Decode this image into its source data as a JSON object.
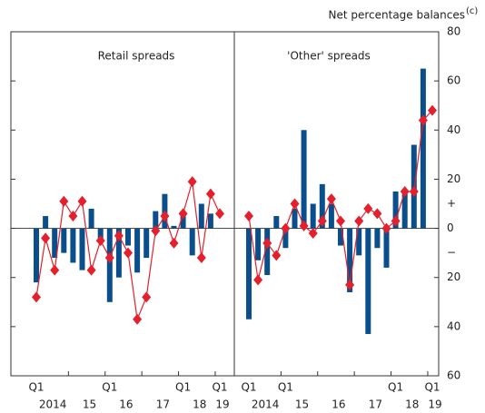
{
  "chart_data": {
    "type": "bar_line",
    "y_title": "Net percentage balances",
    "y_title_note": "(c)",
    "ylim": [
      -60,
      80
    ],
    "yticks": [
      80,
      60,
      40,
      20,
      0,
      {
        "value": -20,
        "label": "20"
      },
      {
        "value": -40,
        "label": "40"
      },
      {
        "value": -60,
        "label": "60"
      }
    ],
    "sign_labels": [
      "+",
      "−"
    ],
    "panels": [
      {
        "title": "Retail spreads",
        "categories": [
          "Q1",
          null,
          null,
          null,
          null,
          null,
          null,
          null,
          "Q1",
          null,
          null,
          null,
          null,
          null,
          null,
          null,
          "Q1",
          null,
          null,
          null,
          "Q1"
        ],
        "year_labels": [
          "2014",
          "15",
          "16",
          "17",
          "18",
          "19"
        ],
        "series": [
          {
            "style": "bar",
            "color": "#0a4f8c",
            "values": [
              -22,
              5,
              -12,
              -10,
              -14,
              -17,
              8,
              -5,
              -30,
              -20,
              -7,
              -18,
              -12,
              7,
              14,
              1,
              7,
              -11,
              10,
              6,
              0
            ]
          },
          {
            "style": "line-marker",
            "color": "#e3202b",
            "values": [
              -28,
              -4,
              -17,
              11,
              5,
              11,
              -17,
              -5,
              -12,
              -3,
              -10,
              -37,
              -28,
              -1,
              5,
              -6,
              6,
              19,
              -12,
              14,
              6
            ]
          }
        ]
      },
      {
        "title": "'Other' spreads",
        "categories": [
          "Q1",
          null,
          null,
          null,
          "Q1",
          null,
          null,
          null,
          null,
          null,
          null,
          null,
          null,
          null,
          null,
          null,
          "Q1",
          null,
          null,
          null,
          "Q1"
        ],
        "year_labels": [
          "2014",
          "15",
          "16",
          "17",
          "18",
          "19"
        ],
        "series": [
          {
            "style": "bar",
            "color": "#0a4f8c",
            "values": [
              -37,
              -13,
              -19,
              5,
              -8,
              8,
              40,
              10,
              18,
              10,
              -7,
              -26,
              -11,
              -43,
              -8,
              -16,
              15,
              14,
              34,
              65,
              0
            ]
          },
          {
            "style": "line-marker",
            "color": "#e3202b",
            "values": [
              5,
              -21,
              -6,
              -11,
              0,
              10,
              1,
              -2,
              3,
              12,
              3,
              -23,
              3,
              8,
              6,
              0,
              3,
              15,
              15,
              44,
              48
            ]
          }
        ]
      }
    ]
  }
}
